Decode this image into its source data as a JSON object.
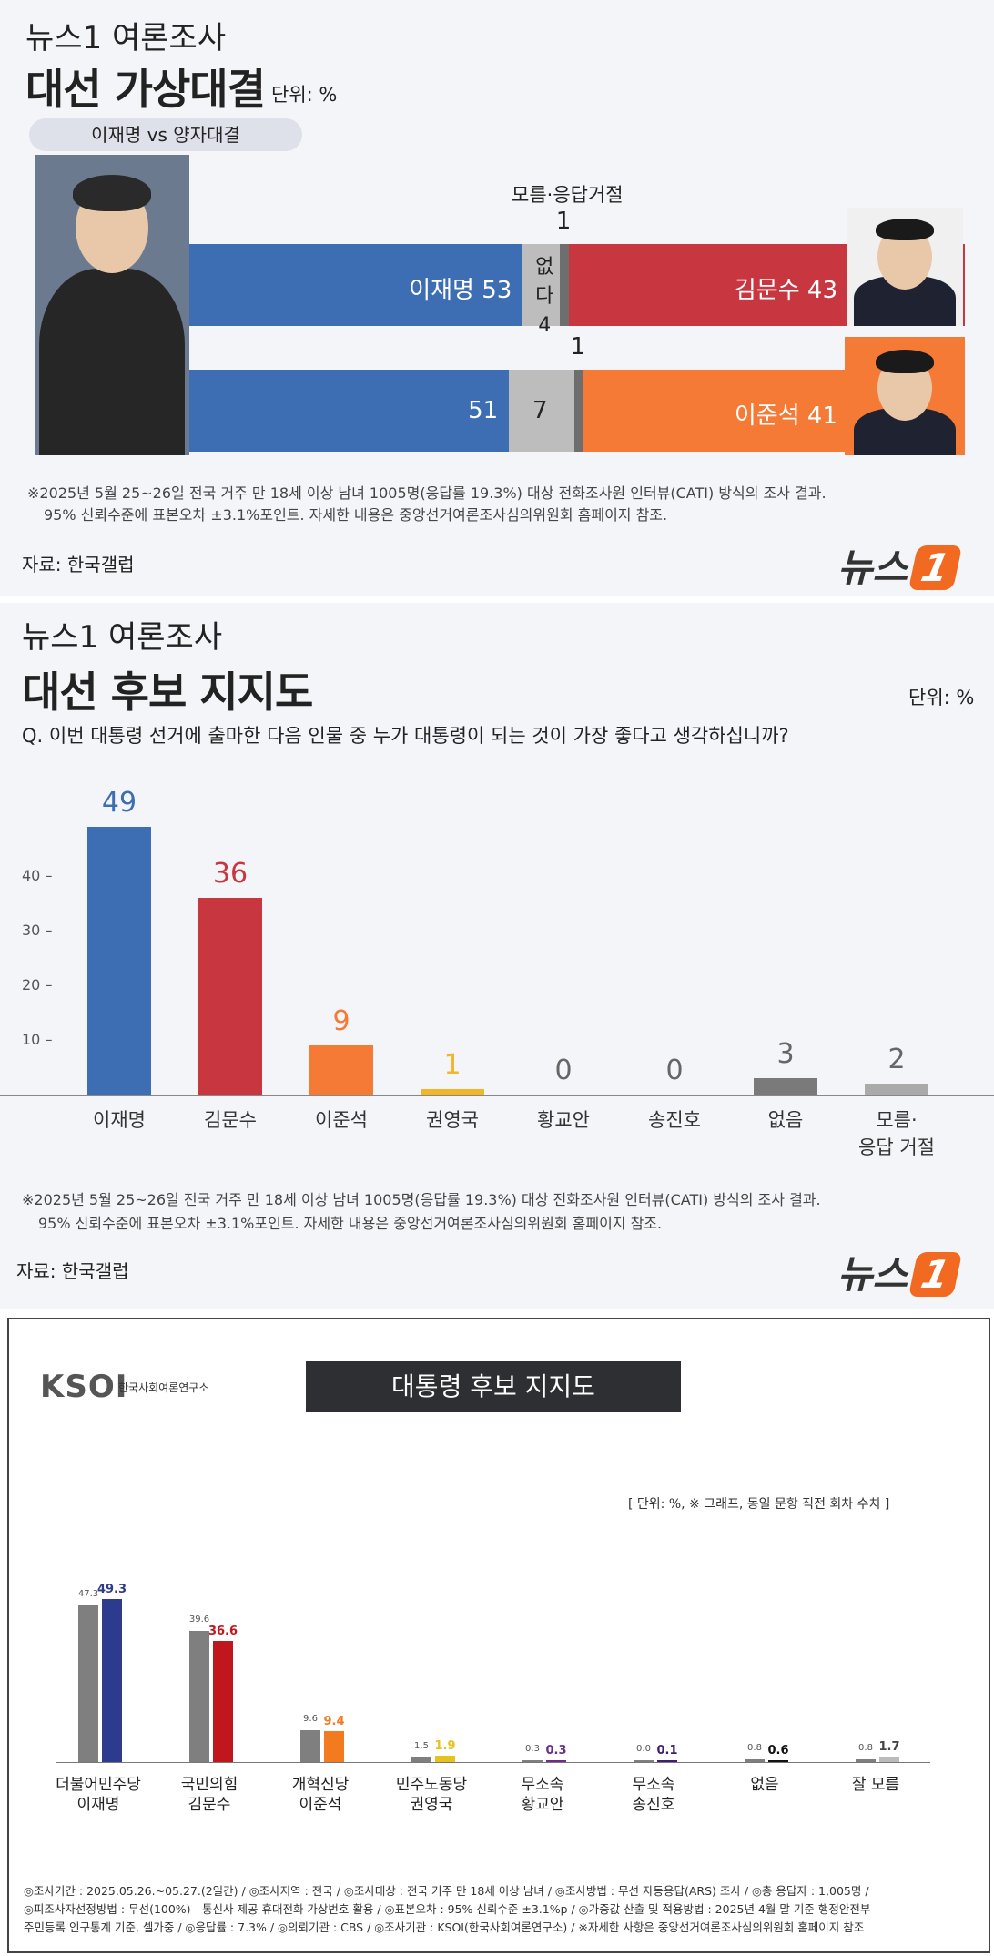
{
  "panel1": {
    "brand": "뉴스1 여론조사",
    "headline": "대선 가상대결",
    "unit": "단위: %",
    "pill": "이재명 vs 양자대결",
    "unknown_label": "모름·응답거절",
    "chart_data": {
      "type": "bar",
      "orientation": "horizontal-stacked",
      "rows": [
        {
          "segments": [
            {
              "name": "이재명",
              "value": 53,
              "color": "#3d6db3",
              "label": "이재명 53"
            },
            {
              "name": "없다",
              "value": 4,
              "color": "#bdbdbd",
              "label": "없다 4"
            },
            {
              "name": "모름·응답거절",
              "value": 1,
              "color": "#6e6e6e",
              "label": "1"
            },
            {
              "name": "김문수",
              "value": 43,
              "color": "#c8373f",
              "label": "김문수 43"
            }
          ]
        },
        {
          "segments": [
            {
              "name": "이재명",
              "value": 51,
              "color": "#3d6db3",
              "label": "51"
            },
            {
              "name": "없다",
              "value": 7,
              "color": "#bdbdbd",
              "label": "7"
            },
            {
              "name": "모름·응답거절",
              "value": 1,
              "color": "#6e6e6e",
              "label": "1"
            },
            {
              "name": "이준석",
              "value": 41,
              "color": "#f47a35",
              "label": "이준석 41"
            }
          ]
        }
      ]
    },
    "note1": "※2025년 5월 25~26일 전국 거주 만 18세 이상 남녀 1005명(응답률 19.3%) 대상 전화조사원 인터뷰(CATI) 방식의 조사 결과.",
    "note2": "95% 신뢰수준에 표본오차 ±3.1%포인트. 자세한 내용은 중앙선거여론조사심의위원회 홈페이지 참조.",
    "source": "자료: 한국갤럽",
    "logo_text": "뉴스",
    "logo_mark": "1"
  },
  "panel2": {
    "brand": "뉴스1 여론조사",
    "headline": "대선 후보 지지도",
    "unit": "단위: %",
    "question": "Q. 이번 대통령 선거에 출마한 다음 인물 중 누가 대통령이 되는 것이 가장 좋다고 생각하십니까?",
    "chart_data": {
      "type": "bar",
      "categories": [
        "이재명",
        "김문수",
        "이준석",
        "권영국",
        "황교안",
        "송진호",
        "없음",
        "모름·\n응답 거절"
      ],
      "values": [
        49,
        36,
        9,
        1,
        0,
        0,
        3,
        2
      ],
      "colors": [
        "#3d6db3",
        "#c8373f",
        "#f47a35",
        "#f2b62b",
        "#999999",
        "#999999",
        "#7a7a7a",
        "#aaaaaa"
      ],
      "ylim": [
        0,
        50
      ],
      "yticks": [
        10,
        20,
        30,
        40
      ]
    },
    "note1": "※2025년 5월 25~26일 전국 거주 만 18세 이상 남녀 1005명(응답률 19.3%) 대상 전화조사원 인터뷰(CATI) 방식의 조사 결과.",
    "note2": "95% 신뢰수준에 표본오차 ±3.1%포인트. 자세한 내용은 중앙선거여론조사심의위원회 홈페이지 참조.",
    "source": "자료: 한국갤럽",
    "logo_text": "뉴스",
    "logo_mark": "1"
  },
  "panel3": {
    "logo": "KSOI",
    "logo_sub": "한국사회여론연구소",
    "title": "대통령 후보 지지도",
    "legend_note": "[ 단위: %, ※ 그래프, 동일 문항 직전 회차 수치 ]",
    "chart_data": {
      "type": "bar",
      "categories": [
        "더불어민주당\n이재명",
        "국민의힘\n김문수",
        "개혁신당\n이준석",
        "민주노동당\n권영국",
        "무소속\n황교안",
        "무소속\n송진호",
        "없음",
        "잘 모름"
      ],
      "series": [
        {
          "values": [
            47.3,
            39.6,
            9.6,
            1.5,
            0.3,
            0.0,
            0.8,
            0.8
          ],
          "color": "#7f7f7f"
        },
        {
          "values": [
            49.3,
            36.6,
            9.4,
            1.9,
            0.3,
            0.1,
            0.6,
            1.7
          ],
          "colors": [
            "#2e3a8c",
            "#c0161e",
            "#f47a20",
            "#e8c21a",
            "#6b2d8c",
            "#3d1f6e",
            "#111111",
            "#bbbbbb"
          ]
        }
      ],
      "ylim": [
        0,
        55
      ]
    },
    "footer1": "◎조사기간 : 2025.05.26.~05.27.(2일간) / ◎조사지역 : 전국 / ◎조사대상 : 전국 거주 만 18세 이상 남녀 / ◎조사방법 : 무선 자동응답(ARS) 조사 / ◎총 응답자 : 1,005명 /",
    "footer2": "◎피조사자선정방법 : 무선(100%) - 통신사 제공 휴대전화 가상번호 활용 / ◎표본오차 : 95% 신뢰수준 ±3.1%p / ◎가중값 산출 및 적용방법 : 2025년 4월 말 기준 행정안전부",
    "footer3": "주민등록 인구통계 기준, 셀가중 / ◎응답률 : 7.3% / ◎의뢰기관 : CBS / ◎조사기관 : KSOI(한국사회여론연구소) / ※자세한 사항은 중앙선거여론조사심의위원회 홈페이지 참조"
  }
}
